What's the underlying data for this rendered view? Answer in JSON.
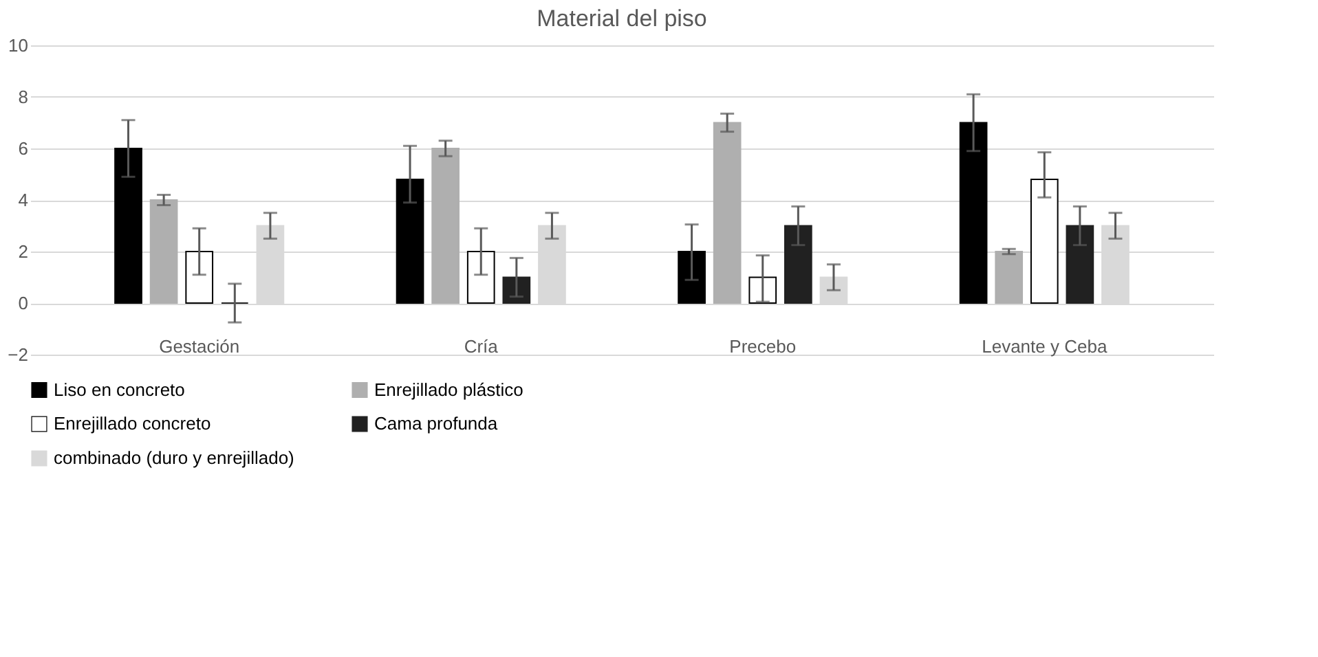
{
  "chart_data": {
    "type": "bar",
    "title": "Material del piso",
    "categories": [
      "Gestación",
      "Cría",
      "Precebo",
      "Levante y Ceba"
    ],
    "series": [
      {
        "name": "Liso en concreto",
        "color": "#000000",
        "values": [
          6,
          4.8,
          2,
          7
        ],
        "errors": [
          [
            4.9,
            7.1
          ],
          [
            3.9,
            6.1
          ],
          [
            0.9,
            3.05
          ],
          [
            5.9,
            8.1
          ]
        ]
      },
      {
        "name": "Enrejillado plástico",
        "color": "#afafaf",
        "values": [
          4,
          6,
          7,
          2
        ],
        "errors": [
          [
            3.8,
            4.2
          ],
          [
            5.7,
            6.3
          ],
          [
            6.65,
            7.35
          ],
          [
            1.9,
            2.1
          ]
        ]
      },
      {
        "name": "Enrejillado concreto",
        "color": "#ffffff",
        "values": [
          2,
          2,
          1,
          4.8
        ],
        "errors": [
          [
            1.1,
            2.9
          ],
          [
            1.1,
            2.9
          ],
          [
            0.05,
            1.85
          ],
          [
            4.1,
            5.85
          ]
        ]
      },
      {
        "name": "Cama profunda",
        "color": "#212121",
        "values": [
          0,
          1,
          3,
          3
        ],
        "errors": [
          [
            -0.75,
            0.75
          ],
          [
            0.25,
            1.75
          ],
          [
            2.25,
            3.75
          ],
          [
            2.25,
            3.75
          ]
        ]
      },
      {
        "name": "combinado (duro y enrejillado)",
        "color": "#d9d9d9",
        "values": [
          3,
          3,
          1,
          3
        ],
        "errors": [
          [
            2.5,
            3.5
          ],
          [
            2.5,
            3.5
          ],
          [
            0.5,
            1.5
          ],
          [
            2.5,
            3.5
          ]
        ]
      }
    ],
    "ylim": [
      -2,
      10
    ],
    "yticks": [
      -2,
      0,
      2,
      4,
      6,
      8,
      10
    ],
    "grid": "y",
    "legend": "bottom"
  }
}
